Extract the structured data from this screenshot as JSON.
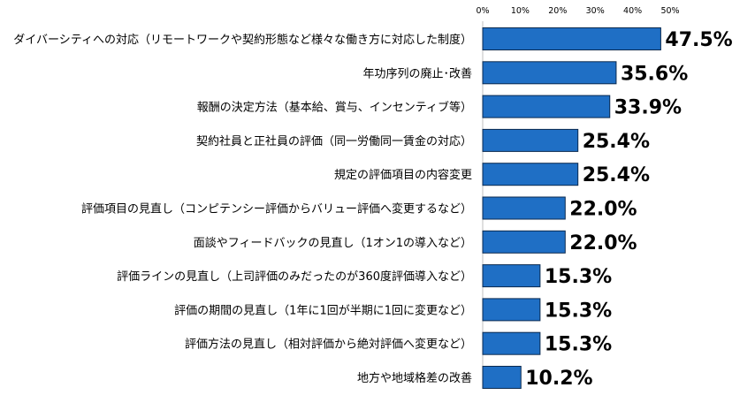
{
  "chart_data": {
    "type": "bar",
    "orientation": "horizontal",
    "title": "",
    "xlabel": "",
    "ylabel": "",
    "xlim": [
      0,
      50
    ],
    "ticks": [
      "0%",
      "10%",
      "20%",
      "30%",
      "40%",
      "50%"
    ],
    "tick_values": [
      0,
      10,
      20,
      30,
      40,
      50
    ],
    "grid": false,
    "legend": "none",
    "bar_color": "#1f6fc5",
    "bar_edge_color": "#0b2a4f",
    "categories": [
      "ダイバーシティへの対応（リモートワークや契約形態など様々な働き方に対応した制度）",
      "年功序列の廃止･改善",
      "報酬の決定方法（基本給、賞与、インセンティブ等）",
      "契約社員と正社員の評価（同一労働同一賃金の対応）",
      "規定の評価項目の内容変更",
      "評価項目の見直し（コンピテンシー評価からバリュー評価へ変更するなど）",
      "面談やフィードバックの見直し（1オン1の導入など）",
      "評価ラインの見直し（上司評価のみだったのが360度評価導入など）",
      "評価の期間の見直し（1年に1回が半期に1回に変更など）",
      "評価方法の見直し（相対評価から絶対評価へ変更など）",
      "地方や地域格差の改善"
    ],
    "values": [
      47.5,
      35.6,
      33.9,
      25.4,
      25.4,
      22.0,
      22.0,
      15.3,
      15.3,
      15.3,
      10.2
    ],
    "value_labels": [
      "47.5%",
      "35.6%",
      "33.9%",
      "25.4%",
      "25.4%",
      "22.0%",
      "22.0%",
      "15.3%",
      "15.3%",
      "15.3%",
      "10.2%"
    ]
  }
}
